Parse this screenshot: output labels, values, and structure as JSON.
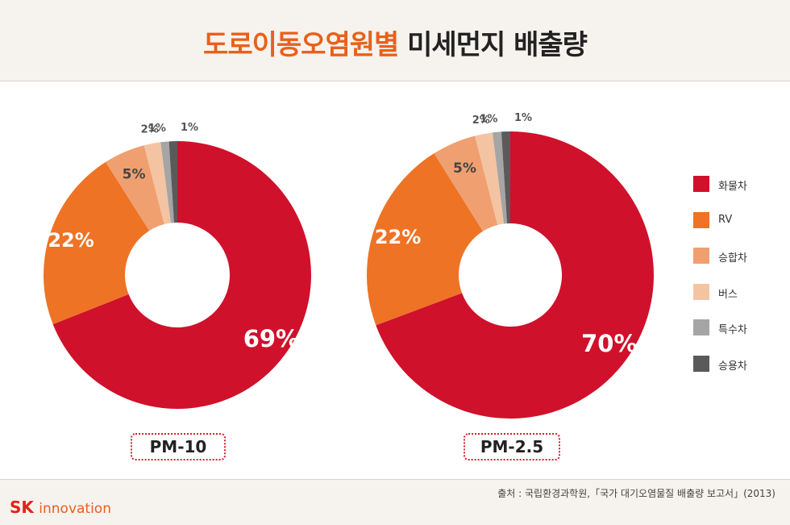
{
  "title": {
    "accent": "도로이동오염원별",
    "rest": "미세먼지 배출량"
  },
  "colors": {
    "화물차": "#d0112b",
    "RV": "#ee7325",
    "승합차": "#f0a070",
    "버스": "#f4c4a2",
    "특수차": "#a5a5a5",
    "승용차": "#5a5a5a"
  },
  "chart_data": [
    {
      "type": "pie",
      "label": "PM-10",
      "slices": [
        {
          "name": "화물차",
          "value": 69,
          "label": "69%"
        },
        {
          "name": "RV",
          "value": 22,
          "label": "22%"
        },
        {
          "name": "승합차",
          "value": 5,
          "label": "5%"
        },
        {
          "name": "버스",
          "value": 2,
          "label": "2%"
        },
        {
          "name": "특수차",
          "value": 1,
          "label": "1%"
        },
        {
          "name": "승용차",
          "value": 1,
          "label": "1%"
        }
      ]
    },
    {
      "type": "pie",
      "label": "PM-2.5",
      "slices": [
        {
          "name": "화물차",
          "value": 70,
          "label": "70%"
        },
        {
          "name": "RV",
          "value": 22,
          "label": "22%"
        },
        {
          "name": "승합차",
          "value": 5,
          "label": "5%"
        },
        {
          "name": "버스",
          "value": 2,
          "label": "2%"
        },
        {
          "name": "특수차",
          "value": 1,
          "label": "1%"
        },
        {
          "name": "승용차",
          "value": 1,
          "label": "1%"
        }
      ]
    }
  ],
  "legend": [
    "화물차",
    "RV",
    "승합차",
    "버스",
    "특수차",
    "승용차"
  ],
  "source": "출처 : 국립환경과학원,「국가 대기오염물질 배출량 보고서」(2013)",
  "logo": {
    "sk": "SK",
    "innovation": "innovation"
  }
}
